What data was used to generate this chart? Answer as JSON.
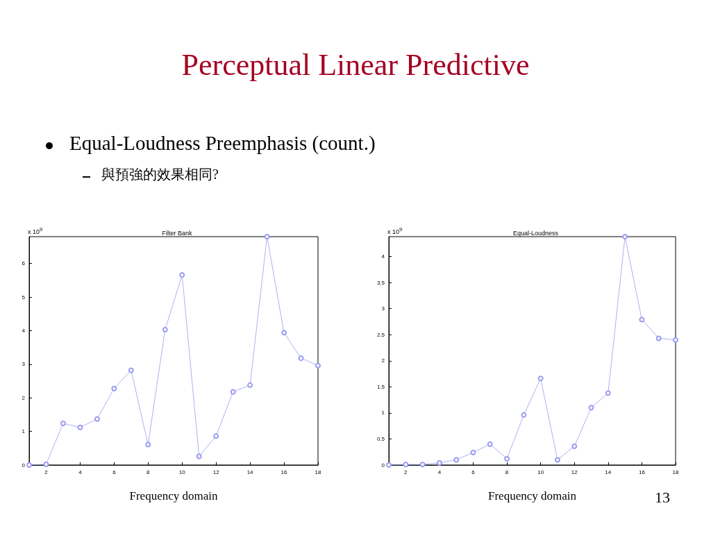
{
  "chart_data": [
    {
      "type": "other",
      "title": "Perceptual Linear Predictive",
      "annotations": [
        "Equal-Loudness Preemphasis (count.)",
        "與預強的效果相同?"
      ]
    },
    {
      "type": "line",
      "title": "Filter Bank",
      "xlabel": "Frequency domain",
      "annotations": [
        "x 10$^{9}$"
      ],
      "x": [
        1,
        2,
        3,
        4,
        5,
        6,
        7,
        8,
        9,
        10,
        11,
        12,
        13,
        14,
        15,
        16,
        17,
        18
      ],
      "series": [
        {
          "color": "#9a9af2",
          "values": [
            0,
            0.02,
            1.24,
            1.12,
            1.37,
            2.28,
            2.82,
            0.61,
            4.03,
            5.66,
            0.26,
            0.86,
            2.18,
            2.38,
            6.8,
            3.94,
            3.18,
            2.96
          ]
        }
      ],
      "xlim": [
        1,
        18
      ],
      "xticks": [
        2,
        4,
        6,
        8,
        10,
        12,
        14,
        16,
        18
      ],
      "ylim": [
        0,
        6.8
      ],
      "yticks": [
        0,
        1,
        2,
        3,
        4,
        5,
        6
      ],
      "grid": false,
      "marker": "circle",
      "line_style": "solid"
    },
    {
      "type": "line",
      "title": "Equal-Loudness",
      "xlabel": "Frequency domain",
      "annotations": [
        "x 10$^{9}$",
        "13"
      ],
      "x": [
        1,
        2,
        3,
        4,
        5,
        6,
        7,
        8,
        9,
        10,
        11,
        12,
        13,
        14,
        15,
        16,
        17,
        18
      ],
      "series": [
        {
          "color": "#9a9af2",
          "values": [
            0,
            0.01,
            0.01,
            0.04,
            0.1,
            0.24,
            0.4,
            0.12,
            0.96,
            1.66,
            0.1,
            0.36,
            1.1,
            1.38,
            4.38,
            2.79,
            2.43,
            2.4
          ]
        }
      ],
      "xlim": [
        1,
        18
      ],
      "xticks": [
        2,
        4,
        6,
        8,
        10,
        12,
        14,
        16,
        18
      ],
      "ylim": [
        0,
        4.38
      ],
      "yticks": [
        0,
        0.5,
        1,
        1.5,
        2,
        2.5,
        3,
        3.5,
        4
      ],
      "grid": false,
      "marker": "circle",
      "line_style": "solid"
    }
  ]
}
